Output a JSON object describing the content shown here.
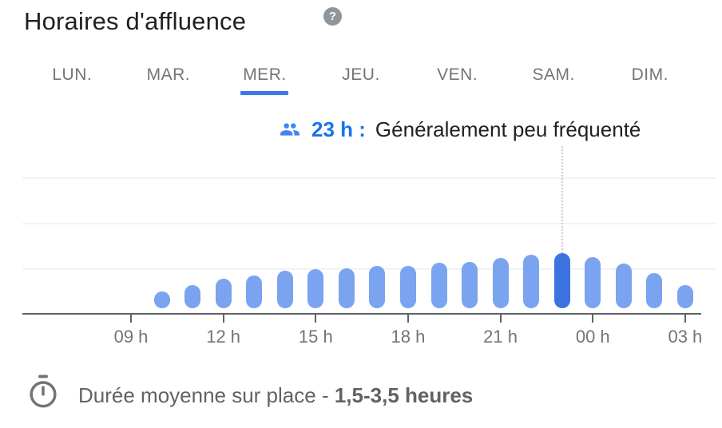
{
  "header": {
    "title": "Horaires d'affluence",
    "help_label": "?"
  },
  "tabs": {
    "items": [
      {
        "label": "LUN.",
        "selected": false
      },
      {
        "label": "MAR.",
        "selected": false
      },
      {
        "label": "MER.",
        "selected": true
      },
      {
        "label": "JEU.",
        "selected": false
      },
      {
        "label": "VEN.",
        "selected": false
      },
      {
        "label": "SAM.",
        "selected": false
      },
      {
        "label": "DIM.",
        "selected": false
      }
    ]
  },
  "status": {
    "hour": "23 h :",
    "description": "Généralement peu fréquenté",
    "icon": "people-icon"
  },
  "chart_data": {
    "type": "bar",
    "title": "Horaires d'affluence",
    "selected_day": "MER.",
    "x_tick_labels": [
      "09 h",
      "12 h",
      "15 h",
      "18 h",
      "21 h",
      "00 h",
      "03 h"
    ],
    "hours": [
      "10 h",
      "11 h",
      "12 h",
      "13 h",
      "14 h",
      "15 h",
      "16 h",
      "17 h",
      "18 h",
      "19 h",
      "20 h",
      "21 h",
      "22 h",
      "23 h",
      "00 h",
      "01 h",
      "02 h",
      "03 h"
    ],
    "busyness_pct": [
      10.3,
      14.3,
      18.2,
      20.2,
      23.2,
      24.1,
      24.6,
      26.1,
      26.1,
      28.1,
      28.6,
      31,
      33,
      34,
      31.5,
      27.6,
      21.7,
      14.3
    ],
    "highlighted_hour": "23 h",
    "highlighted_value": 34,
    "annotation": "23 h : Généralement peu fréquenté",
    "ylim": [
      0,
      100
    ],
    "grid": true,
    "legend": "none"
  },
  "footer": {
    "duration_label": "Durée moyenne sur place - ",
    "duration_value": "1,5-3,5 heures"
  },
  "colors": {
    "title": "#202124",
    "label": "#70757a",
    "axis": "#5f6368",
    "gridline": "#f1f3f4",
    "dotted_line": "#c9ccd1",
    "bar": "#7aa3f0",
    "bar_selected": "#3b73e0",
    "tab_underline": "#3b78e8",
    "accent_text": "#1a73e8",
    "people_icon": "#4285f4",
    "help_bg": "#8e959b"
  }
}
